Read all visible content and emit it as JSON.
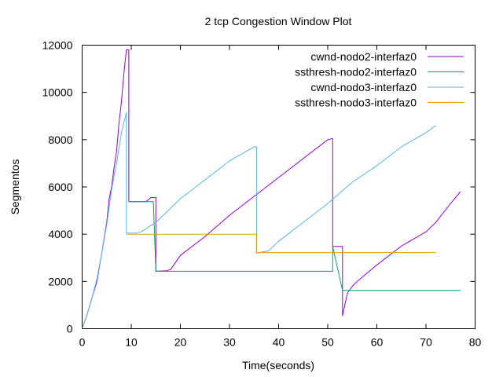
{
  "chart_data": {
    "type": "line",
    "title": "2 tcp Congestion Window Plot",
    "xlabel": "Time(seconds)",
    "ylabel": "Segmentos",
    "xlim": [
      0,
      80
    ],
    "ylim": [
      0,
      12000
    ],
    "xticks": [
      0,
      10,
      20,
      30,
      40,
      50,
      60,
      70,
      80
    ],
    "yticks": [
      0,
      2000,
      4000,
      6000,
      8000,
      10000,
      12000
    ],
    "grid": false,
    "legend_position": "top-right",
    "series": [
      {
        "name": "cwnd-nodo2-interfaz0",
        "color": "#9400d3",
        "points": [
          [
            0,
            0
          ],
          [
            1,
            600
          ],
          [
            2,
            1300
          ],
          [
            3,
            2000
          ],
          [
            4,
            3200
          ],
          [
            5,
            4500
          ],
          [
            5.5,
            5500
          ],
          [
            6,
            6000
          ],
          [
            6.5,
            6800
          ],
          [
            7,
            7500
          ],
          [
            7.5,
            8700
          ],
          [
            8,
            9600
          ],
          [
            8.5,
            10800
          ],
          [
            9,
            11800
          ],
          [
            9.5,
            11800
          ],
          [
            9.5,
            5380
          ],
          [
            13,
            5380
          ],
          [
            14,
            5550
          ],
          [
            15,
            5550
          ],
          [
            15,
            2430
          ],
          [
            17,
            2450
          ],
          [
            18,
            2500
          ],
          [
            20,
            3100
          ],
          [
            25,
            3900
          ],
          [
            30,
            4800
          ],
          [
            35,
            5600
          ],
          [
            40,
            6400
          ],
          [
            45,
            7200
          ],
          [
            50,
            8000
          ],
          [
            51,
            8050
          ],
          [
            51,
            3480
          ],
          [
            53,
            3480
          ],
          [
            53,
            550
          ],
          [
            54,
            1500
          ],
          [
            55,
            1800
          ],
          [
            56,
            2000
          ],
          [
            60,
            2700
          ],
          [
            65,
            3500
          ],
          [
            70,
            4100
          ],
          [
            72,
            4500
          ],
          [
            75,
            5300
          ],
          [
            77,
            5800
          ]
        ]
      },
      {
        "name": "ssthresh-nodo2-interfaz0",
        "color": "#009e73",
        "points": [
          [
            9.5,
            5380
          ],
          [
            14.5,
            5380
          ],
          [
            15,
            2430
          ],
          [
            51,
            2430
          ],
          [
            51,
            3480
          ],
          [
            53,
            1620
          ],
          [
            77,
            1620
          ]
        ]
      },
      {
        "name": "cwnd-nodo3-interfaz0",
        "color": "#56b4e9",
        "points": [
          [
            0,
            0
          ],
          [
            1,
            600
          ],
          [
            2,
            1300
          ],
          [
            3,
            2100
          ],
          [
            4,
            3200
          ],
          [
            5,
            4400
          ],
          [
            6,
            5900
          ],
          [
            7,
            7000
          ],
          [
            8,
            8300
          ],
          [
            9,
            9150
          ],
          [
            9,
            4050
          ],
          [
            11,
            4050
          ],
          [
            12,
            4100
          ],
          [
            15,
            4500
          ],
          [
            20,
            5500
          ],
          [
            25,
            6300
          ],
          [
            30,
            7100
          ],
          [
            35,
            7700
          ],
          [
            35.5,
            7700
          ],
          [
            35.5,
            3200
          ],
          [
            38,
            3300
          ],
          [
            40,
            3700
          ],
          [
            45,
            4500
          ],
          [
            50,
            5300
          ],
          [
            55,
            6200
          ],
          [
            60,
            6900
          ],
          [
            65,
            7700
          ],
          [
            70,
            8300
          ],
          [
            72,
            8600
          ]
        ]
      },
      {
        "name": "ssthresh-nodo3-interfaz0",
        "color": "#e69f00",
        "points": [
          [
            9,
            4000
          ],
          [
            35.5,
            4000
          ],
          [
            35.5,
            3220
          ],
          [
            72,
            3220
          ]
        ]
      }
    ]
  }
}
